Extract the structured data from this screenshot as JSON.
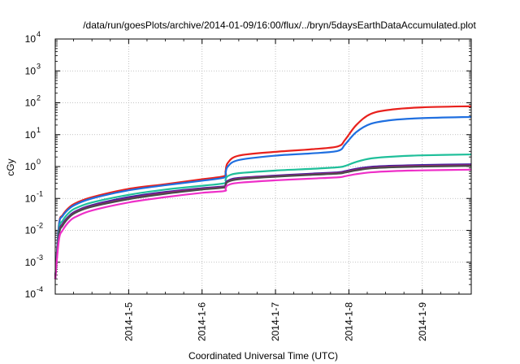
{
  "chart_data": {
    "type": "line",
    "title": "/data/run/goesPlots/archive/2014-01-09/16:00/flux/../bryn/5daysEarthDataAccumulated.plot",
    "xlabel": "Coordinated Universal Time (UTC)",
    "ylabel": "cGy",
    "yscale": "log",
    "ylim": [
      0.0001,
      10000
    ],
    "y_ticks": [
      {
        "base": "10",
        "exp": "-4"
      },
      {
        "base": "10",
        "exp": "-3"
      },
      {
        "base": "10",
        "exp": "-2"
      },
      {
        "base": "10",
        "exp": "-1"
      },
      {
        "base": "10",
        "exp": "0"
      },
      {
        "base": "10",
        "exp": "1"
      },
      {
        "base": "10",
        "exp": "2"
      },
      {
        "base": "10",
        "exp": "3"
      },
      {
        "base": "10",
        "exp": "4"
      }
    ],
    "xlim": [
      "2014-01-04T00:00",
      "2014-01-09T16:00"
    ],
    "x_ticks": [
      "2014-1-5",
      "2014-1-6",
      "2014-1-7",
      "2014-1-8",
      "2014-1-9"
    ],
    "grid": true,
    "series": [
      {
        "color": "#e8211d",
        "values": [
          [
            "2014-01-04T00:00",
            0.0003
          ],
          [
            "2014-01-04T01:12",
            0.015
          ],
          [
            "2014-01-04T02:24",
            0.03
          ],
          [
            "2014-01-04T04:48",
            0.055
          ],
          [
            "2014-01-04T07:12",
            0.075
          ],
          [
            "2014-01-04T12:00",
            0.11
          ],
          [
            "2014-01-05T00:00",
            0.2
          ],
          [
            "2014-01-05T12:00",
            0.28
          ],
          [
            "2014-01-06T00:00",
            0.4
          ],
          [
            "2014-01-06T07:12",
            0.5
          ],
          [
            "2014-01-06T07:40",
            0.7
          ],
          [
            "2014-01-06T08:24",
            1.3
          ],
          [
            "2014-01-06T12:00",
            2.2
          ],
          [
            "2014-01-07T00:00",
            2.9
          ],
          [
            "2014-01-07T12:00",
            3.5
          ],
          [
            "2014-01-07T20:24",
            4.3
          ],
          [
            "2014-01-07T22:48",
            7
          ],
          [
            "2014-01-08T02:24",
            20
          ],
          [
            "2014-01-08T07:12",
            45
          ],
          [
            "2014-01-08T14:24",
            62
          ],
          [
            "2014-01-09T00:00",
            72
          ],
          [
            "2014-01-09T16:00",
            78
          ]
        ]
      },
      {
        "color": "#1f6fe0",
        "values": [
          [
            "2014-01-04T00:00",
            0.0003
          ],
          [
            "2014-01-04T01:12",
            0.014
          ],
          [
            "2014-01-04T02:24",
            0.028
          ],
          [
            "2014-01-04T04:48",
            0.05
          ],
          [
            "2014-01-04T07:12",
            0.068
          ],
          [
            "2014-01-04T12:00",
            0.1
          ],
          [
            "2014-01-05T00:00",
            0.18
          ],
          [
            "2014-01-05T12:00",
            0.26
          ],
          [
            "2014-01-06T00:00",
            0.36
          ],
          [
            "2014-01-06T07:12",
            0.45
          ],
          [
            "2014-01-06T07:40",
            0.6
          ],
          [
            "2014-01-06T08:24",
            1.0
          ],
          [
            "2014-01-06T12:00",
            1.6
          ],
          [
            "2014-01-07T00:00",
            2.2
          ],
          [
            "2014-01-07T12:00",
            2.6
          ],
          [
            "2014-01-07T20:24",
            3.1
          ],
          [
            "2014-01-07T22:48",
            5
          ],
          [
            "2014-01-08T02:24",
            12
          ],
          [
            "2014-01-08T07:12",
            22
          ],
          [
            "2014-01-08T14:24",
            29
          ],
          [
            "2014-01-09T00:00",
            33
          ],
          [
            "2014-01-09T16:00",
            36
          ]
        ]
      },
      {
        "color": "#1fbf9a",
        "values": [
          [
            "2014-01-04T00:00",
            0.0003
          ],
          [
            "2014-01-04T01:12",
            0.01
          ],
          [
            "2014-01-04T02:24",
            0.02
          ],
          [
            "2014-01-04T04:48",
            0.038
          ],
          [
            "2014-01-04T07:12",
            0.052
          ],
          [
            "2014-01-04T12:00",
            0.075
          ],
          [
            "2014-01-05T00:00",
            0.13
          ],
          [
            "2014-01-05T12:00",
            0.19
          ],
          [
            "2014-01-06T00:00",
            0.25
          ],
          [
            "2014-01-06T07:12",
            0.3
          ],
          [
            "2014-01-06T07:40",
            0.38
          ],
          [
            "2014-01-06T08:24",
            0.5
          ],
          [
            "2014-01-06T12:00",
            0.62
          ],
          [
            "2014-01-07T00:00",
            0.75
          ],
          [
            "2014-01-07T12:00",
            0.85
          ],
          [
            "2014-01-07T20:24",
            0.95
          ],
          [
            "2014-01-07T22:48",
            1.05
          ],
          [
            "2014-01-08T02:24",
            1.4
          ],
          [
            "2014-01-08T07:12",
            1.8
          ],
          [
            "2014-01-08T14:24",
            2.05
          ],
          [
            "2014-01-09T00:00",
            2.25
          ],
          [
            "2014-01-09T16:00",
            2.4
          ]
        ]
      },
      {
        "color": "#3a1f9e",
        "values": [
          [
            "2014-01-04T00:00",
            0.0003
          ],
          [
            "2014-01-04T01:12",
            0.008
          ],
          [
            "2014-01-04T02:24",
            0.016
          ],
          [
            "2014-01-04T04:48",
            0.03
          ],
          [
            "2014-01-04T07:12",
            0.042
          ],
          [
            "2014-01-04T12:00",
            0.062
          ],
          [
            "2014-01-05T00:00",
            0.11
          ],
          [
            "2014-01-05T12:00",
            0.16
          ],
          [
            "2014-01-06T00:00",
            0.21
          ],
          [
            "2014-01-06T07:12",
            0.24
          ],
          [
            "2014-01-06T07:40",
            0.28
          ],
          [
            "2014-01-06T08:24",
            0.36
          ],
          [
            "2014-01-06T12:00",
            0.44
          ],
          [
            "2014-01-07T00:00",
            0.52
          ],
          [
            "2014-01-07T12:00",
            0.6
          ],
          [
            "2014-01-07T20:24",
            0.66
          ],
          [
            "2014-01-07T22:48",
            0.72
          ],
          [
            "2014-01-08T02:24",
            0.85
          ],
          [
            "2014-01-08T07:12",
            0.98
          ],
          [
            "2014-01-08T14:24",
            1.06
          ],
          [
            "2014-01-09T00:00",
            1.12
          ],
          [
            "2014-01-09T16:00",
            1.18
          ]
        ]
      },
      {
        "color": "#a01f7a",
        "values": [
          [
            "2014-01-04T00:00",
            0.0003
          ],
          [
            "2014-01-04T01:12",
            0.0075
          ],
          [
            "2014-01-04T02:24",
            0.015
          ],
          [
            "2014-01-04T04:48",
            0.028
          ],
          [
            "2014-01-04T07:12",
            0.04
          ],
          [
            "2014-01-04T12:00",
            0.058
          ],
          [
            "2014-01-05T00:00",
            0.1
          ],
          [
            "2014-01-05T12:00",
            0.15
          ],
          [
            "2014-01-06T00:00",
            0.2
          ],
          [
            "2014-01-06T07:12",
            0.23
          ],
          [
            "2014-01-06T07:40",
            0.27
          ],
          [
            "2014-01-06T08:24",
            0.34
          ],
          [
            "2014-01-06T12:00",
            0.42
          ],
          [
            "2014-01-07T00:00",
            0.5
          ],
          [
            "2014-01-07T12:00",
            0.57
          ],
          [
            "2014-01-07T20:24",
            0.63
          ],
          [
            "2014-01-07T22:48",
            0.68
          ],
          [
            "2014-01-08T02:24",
            0.8
          ],
          [
            "2014-01-08T07:12",
            0.92
          ],
          [
            "2014-01-08T14:24",
            1.0
          ],
          [
            "2014-01-09T00:00",
            1.05
          ],
          [
            "2014-01-09T16:00",
            1.1
          ]
        ]
      },
      {
        "color": "#4a4a4a",
        "values": [
          [
            "2014-01-04T00:00",
            0.0003
          ],
          [
            "2014-01-04T01:12",
            0.007
          ],
          [
            "2014-01-04T02:24",
            0.014
          ],
          [
            "2014-01-04T04:48",
            0.027
          ],
          [
            "2014-01-04T07:12",
            0.038
          ],
          [
            "2014-01-04T12:00",
            0.055
          ],
          [
            "2014-01-05T00:00",
            0.095
          ],
          [
            "2014-01-05T12:00",
            0.14
          ],
          [
            "2014-01-06T00:00",
            0.19
          ],
          [
            "2014-01-06T07:12",
            0.22
          ],
          [
            "2014-01-06T07:40",
            0.26
          ],
          [
            "2014-01-06T08:24",
            0.33
          ],
          [
            "2014-01-06T12:00",
            0.4
          ],
          [
            "2014-01-07T00:00",
            0.48
          ],
          [
            "2014-01-07T12:00",
            0.55
          ],
          [
            "2014-01-07T20:24",
            0.6
          ],
          [
            "2014-01-07T22:48",
            0.65
          ],
          [
            "2014-01-08T02:24",
            0.76
          ],
          [
            "2014-01-08T07:12",
            0.88
          ],
          [
            "2014-01-08T14:24",
            0.95
          ],
          [
            "2014-01-09T00:00",
            1.0
          ],
          [
            "2014-01-09T16:00",
            1.05
          ]
        ]
      },
      {
        "color": "#ee2fc8",
        "values": [
          [
            "2014-01-04T00:00",
            0.0003
          ],
          [
            "2014-01-04T01:12",
            0.005
          ],
          [
            "2014-01-04T02:24",
            0.01
          ],
          [
            "2014-01-04T04:48",
            0.02
          ],
          [
            "2014-01-04T07:12",
            0.028
          ],
          [
            "2014-01-04T12:00",
            0.042
          ],
          [
            "2014-01-05T00:00",
            0.075
          ],
          [
            "2014-01-05T12:00",
            0.11
          ],
          [
            "2014-01-06T00:00",
            0.15
          ],
          [
            "2014-01-06T07:12",
            0.17
          ],
          [
            "2014-01-06T07:40",
            0.2
          ],
          [
            "2014-01-06T08:24",
            0.26
          ],
          [
            "2014-01-06T12:00",
            0.31
          ],
          [
            "2014-01-07T00:00",
            0.37
          ],
          [
            "2014-01-07T12:00",
            0.42
          ],
          [
            "2014-01-07T20:24",
            0.46
          ],
          [
            "2014-01-07T22:48",
            0.5
          ],
          [
            "2014-01-08T02:24",
            0.58
          ],
          [
            "2014-01-08T07:12",
            0.66
          ],
          [
            "2014-01-08T14:24",
            0.72
          ],
          [
            "2014-01-09T00:00",
            0.76
          ],
          [
            "2014-01-09T16:00",
            0.8
          ]
        ]
      }
    ]
  }
}
